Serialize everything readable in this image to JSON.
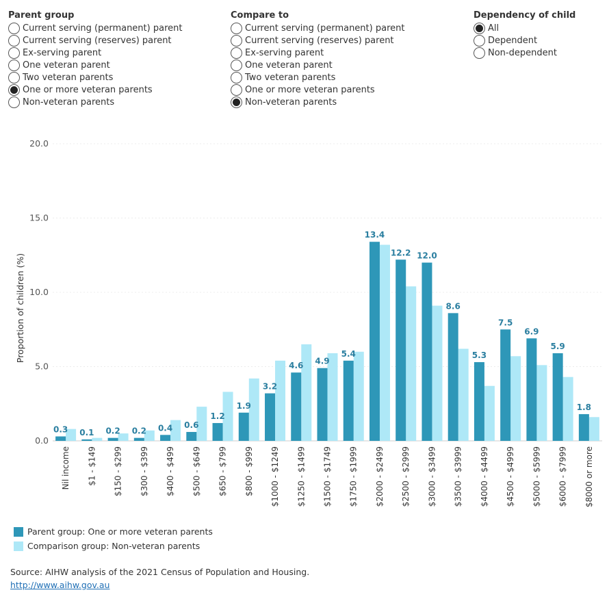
{
  "filters": {
    "parent_group": {
      "title": "Parent group",
      "selected": 5,
      "options": [
        "Current serving (permanent) parent",
        "Current serving (reserves) parent",
        "Ex-serving parent",
        "One veteran parent",
        "Two veteran parents",
        "One or more veteran parents",
        "Non-veteran parents"
      ]
    },
    "compare_to": {
      "title": "Compare to",
      "selected": 6,
      "options": [
        "Current serving (permanent) parent",
        "Current serving (reserves) parent",
        "Ex-serving parent",
        "One veteran parent",
        "Two veteran parents",
        "One or more veteran parents",
        "Non-veteran parents"
      ]
    },
    "dependency": {
      "title": "Dependency of child",
      "selected": 0,
      "options": [
        "All",
        "Dependent",
        "Non-dependent"
      ]
    }
  },
  "chart_data": {
    "type": "bar",
    "ylabel": "Proportion of children (%)",
    "xlabel": "",
    "ylim": [
      0,
      20
    ],
    "yticks": [
      "0.0",
      "5.0",
      "10.0",
      "15.0",
      "20.0"
    ],
    "categories": [
      "Nil income",
      "$1 - $149",
      "$150 - $299",
      "$300 - $399",
      "$400 - $499",
      "$500 - $649",
      "$650 - $799",
      "$800 - $999",
      "$1000 - $1249",
      "$1250 - $1499",
      "$1500 - $1749",
      "$1750 - $1999",
      "$2000 - $2499",
      "$2500 - $2999",
      "$3000 - $3499",
      "$3500 - $3999",
      "$4000 - $4499",
      "$4500 - $4999",
      "$5000 - $5999",
      "$6000 - $7999",
      "$8000 or more"
    ],
    "series": [
      {
        "name": "Parent group: One or more veteran parents",
        "color": "#2e97b8",
        "labels": [
          "0.3",
          "0.1",
          "0.2",
          "0.2",
          "0.4",
          "0.6",
          "1.2",
          "1.9",
          "3.2",
          "4.6",
          "4.9",
          "5.4",
          "13.4",
          "12.2",
          "12.0",
          "8.6",
          "5.3",
          "7.5",
          "6.9",
          "5.9",
          "1.8"
        ],
        "values": [
          0.3,
          0.1,
          0.2,
          0.2,
          0.4,
          0.6,
          1.2,
          1.9,
          3.2,
          4.6,
          4.9,
          5.4,
          13.4,
          12.2,
          12.0,
          8.6,
          5.3,
          7.5,
          6.9,
          5.9,
          1.8
        ]
      },
      {
        "name": "Comparison group: Non-veteran parents",
        "color": "#aee8f7",
        "values": [
          0.8,
          0.2,
          0.5,
          0.7,
          1.4,
          2.3,
          3.3,
          4.2,
          5.4,
          6.5,
          5.9,
          6.0,
          13.2,
          10.4,
          9.1,
          6.2,
          3.7,
          5.7,
          5.1,
          4.3,
          1.6
        ]
      }
    ],
    "data_label_color": "#2b7fa0"
  },
  "source": {
    "text": "Source: AIHW analysis of the 2021 Census of Population and Housing.",
    "link": "http://www.aihw.gov.au"
  }
}
